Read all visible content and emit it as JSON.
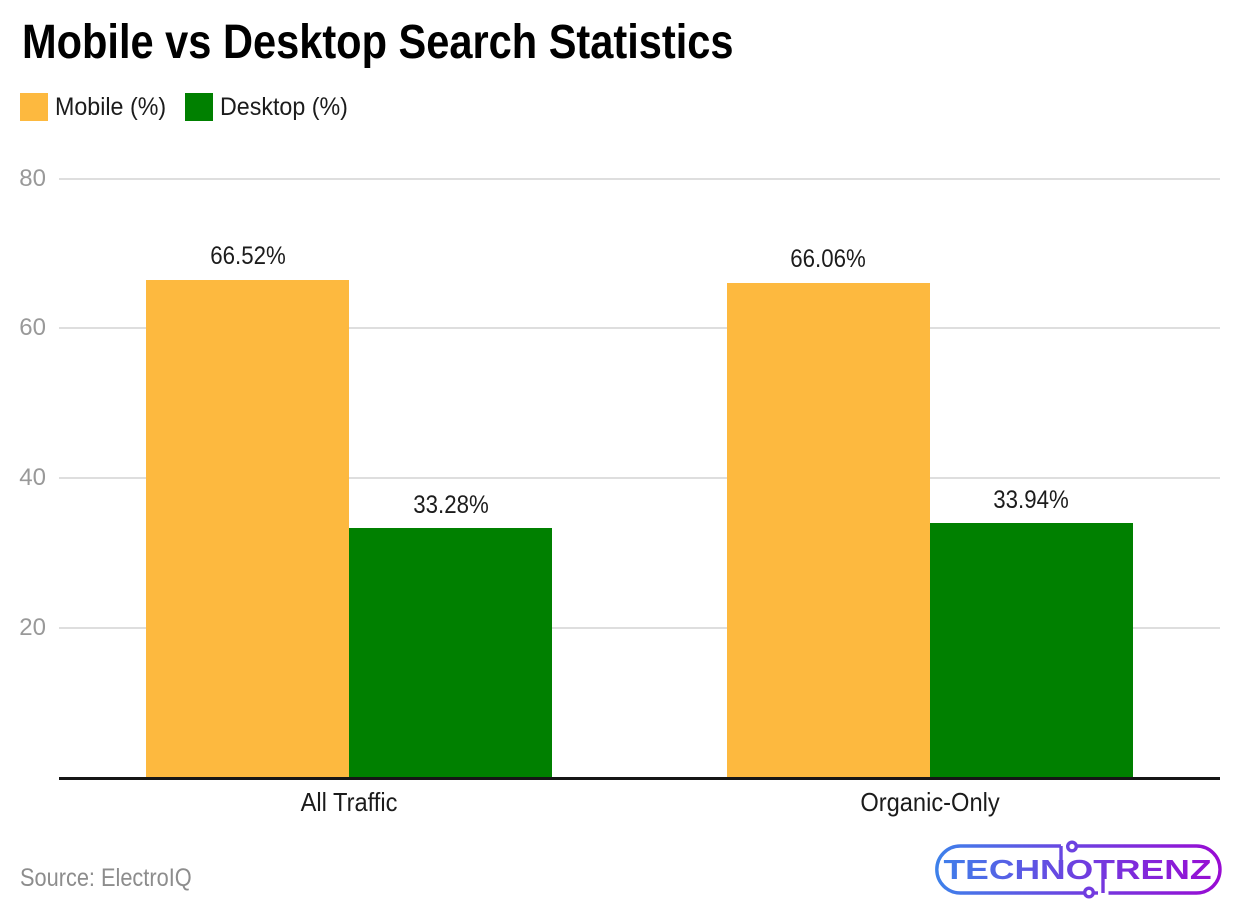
{
  "header": {
    "title": "Mobile vs Desktop Search Statistics"
  },
  "legend": {
    "items": [
      {
        "label": "Mobile (%)",
        "color": "#FDB93F"
      },
      {
        "label": "Desktop (%)",
        "color": "#008000"
      }
    ]
  },
  "chart_data": {
    "type": "bar",
    "title": "Mobile vs Desktop Search Statistics",
    "categories": [
      "All Traffic",
      "Organic-Only"
    ],
    "series": [
      {
        "name": "Mobile (%)",
        "color": "#FDB93F",
        "values": [
          66.52,
          66.06
        ],
        "data_labels": [
          "66.52%",
          "66.06%"
        ]
      },
      {
        "name": "Desktop (%)",
        "color": "#008000",
        "values": [
          33.28,
          33.94
        ],
        "data_labels": [
          "33.28%",
          "33.94%"
        ]
      }
    ],
    "ylim": [
      0,
      80
    ],
    "yticks": [
      20,
      40,
      60,
      80
    ],
    "grid": true,
    "legend_position": "top-left",
    "colors": {
      "gridline": "#dedede",
      "axis_line": "#161616",
      "tick_label": "#999999",
      "data_label": "#1c1c1c",
      "category_label": "#1b1b1b"
    }
  },
  "footer": {
    "source": "Source: ElectroIQ"
  },
  "logo": {
    "text": "TECHNOTRENZ",
    "gradient": [
      "#3C84EB",
      "#6E3FE0",
      "#9C08D2"
    ]
  }
}
